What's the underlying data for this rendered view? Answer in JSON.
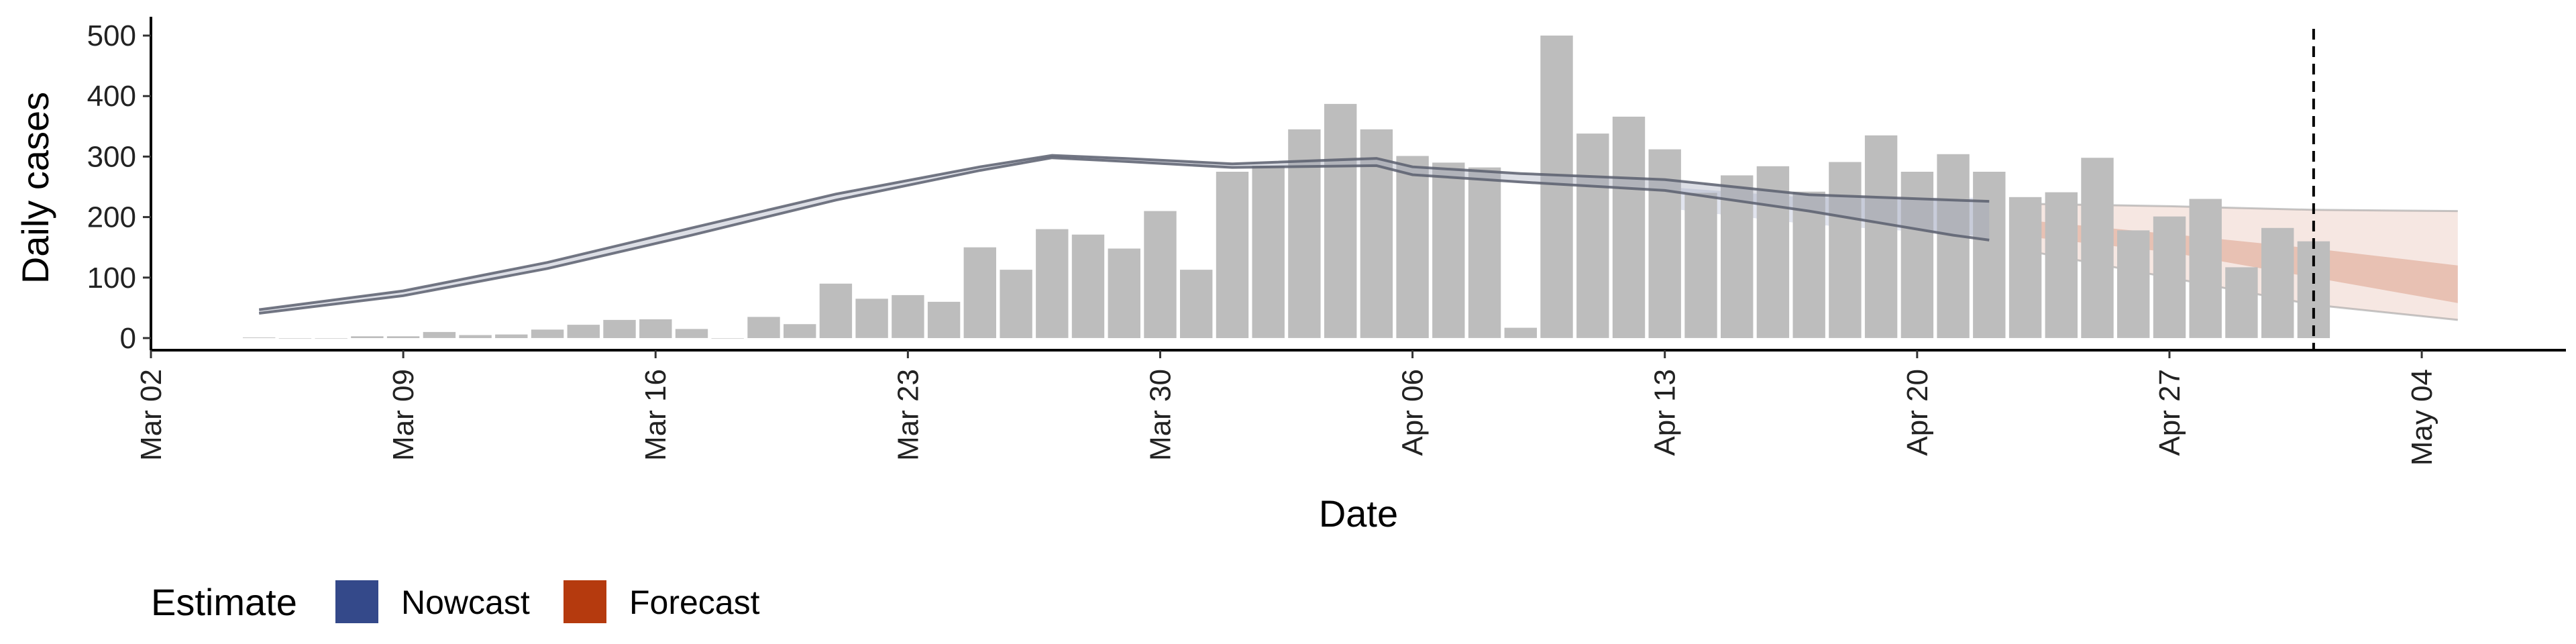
{
  "chart_data": {
    "type": "bar",
    "xlabel": "Date",
    "ylabel": "Daily cases",
    "x_ticks": [
      "Mar 02",
      "Mar 09",
      "Mar 16",
      "Mar 23",
      "Mar 30",
      "Apr 06",
      "Apr 13",
      "Apr 20",
      "Apr 27",
      "May 04"
    ],
    "y_ticks": [
      0,
      100,
      200,
      300,
      400,
      500
    ],
    "xlim": [
      "2020-03-02",
      "2020-05-08"
    ],
    "ylim": [
      -20,
      520
    ],
    "grid": false,
    "bars": {
      "start_date": "2020-03-05",
      "values": [
        1,
        0,
        0,
        3,
        3,
        10,
        5,
        6,
        14,
        22,
        30,
        31,
        15,
        0,
        35,
        23,
        90,
        65,
        71,
        60,
        150,
        113,
        180,
        171,
        148,
        210,
        113,
        275,
        285,
        345,
        387,
        345,
        301,
        290,
        282,
        17,
        500,
        338,
        366,
        312,
        240,
        269,
        284,
        242,
        291,
        335,
        275,
        304,
        275,
        233,
        241,
        298,
        178,
        201,
        230,
        117,
        182,
        160
      ],
      "color": "#bdbdbd"
    },
    "estimate_line": {
      "dates": [
        "2020-03-05",
        "2020-03-09",
        "2020-03-13",
        "2020-03-17",
        "2020-03-21",
        "2020-03-25",
        "2020-03-27",
        "2020-03-29",
        "2020-04-01",
        "2020-04-05",
        "2020-04-06",
        "2020-04-09",
        "2020-04-13",
        "2020-04-17",
        "2020-04-21",
        "2020-04-22"
      ],
      "upper": [
        47,
        78,
        125,
        182,
        238,
        283,
        302,
        297,
        288,
        297,
        283,
        272,
        262,
        237,
        228,
        226
      ],
      "lower": [
        41,
        70,
        115,
        170,
        228,
        277,
        298,
        292,
        282,
        285,
        270,
        258,
        244,
        210,
        170,
        162
      ],
      "color": "#5a5f6e"
    },
    "nowcast_band": {
      "dates": [
        "2020-04-13",
        "2020-04-17",
        "2020-04-22"
      ],
      "upper": [
        250,
        232,
        232
      ],
      "lower": [
        215,
        188,
        168
      ]
    },
    "forecast": {
      "dates": [
        "2020-04-23",
        "2020-04-27",
        "2020-05-01",
        "2020-05-05"
      ],
      "outer_upper": [
        222,
        218,
        212,
        210
      ],
      "outer_lower": [
        145,
        100,
        55,
        30
      ],
      "inner_upper": [
        195,
        172,
        148,
        120
      ],
      "inner_lower": [
        168,
        142,
        100,
        58
      ]
    },
    "vline_date": "2020-05-01",
    "legend": {
      "title": "Estimate",
      "position": "bottom",
      "items": [
        {
          "label": "Nowcast",
          "color": "#34498a"
        },
        {
          "label": "Forecast",
          "color": "#b53a0e"
        }
      ]
    }
  }
}
